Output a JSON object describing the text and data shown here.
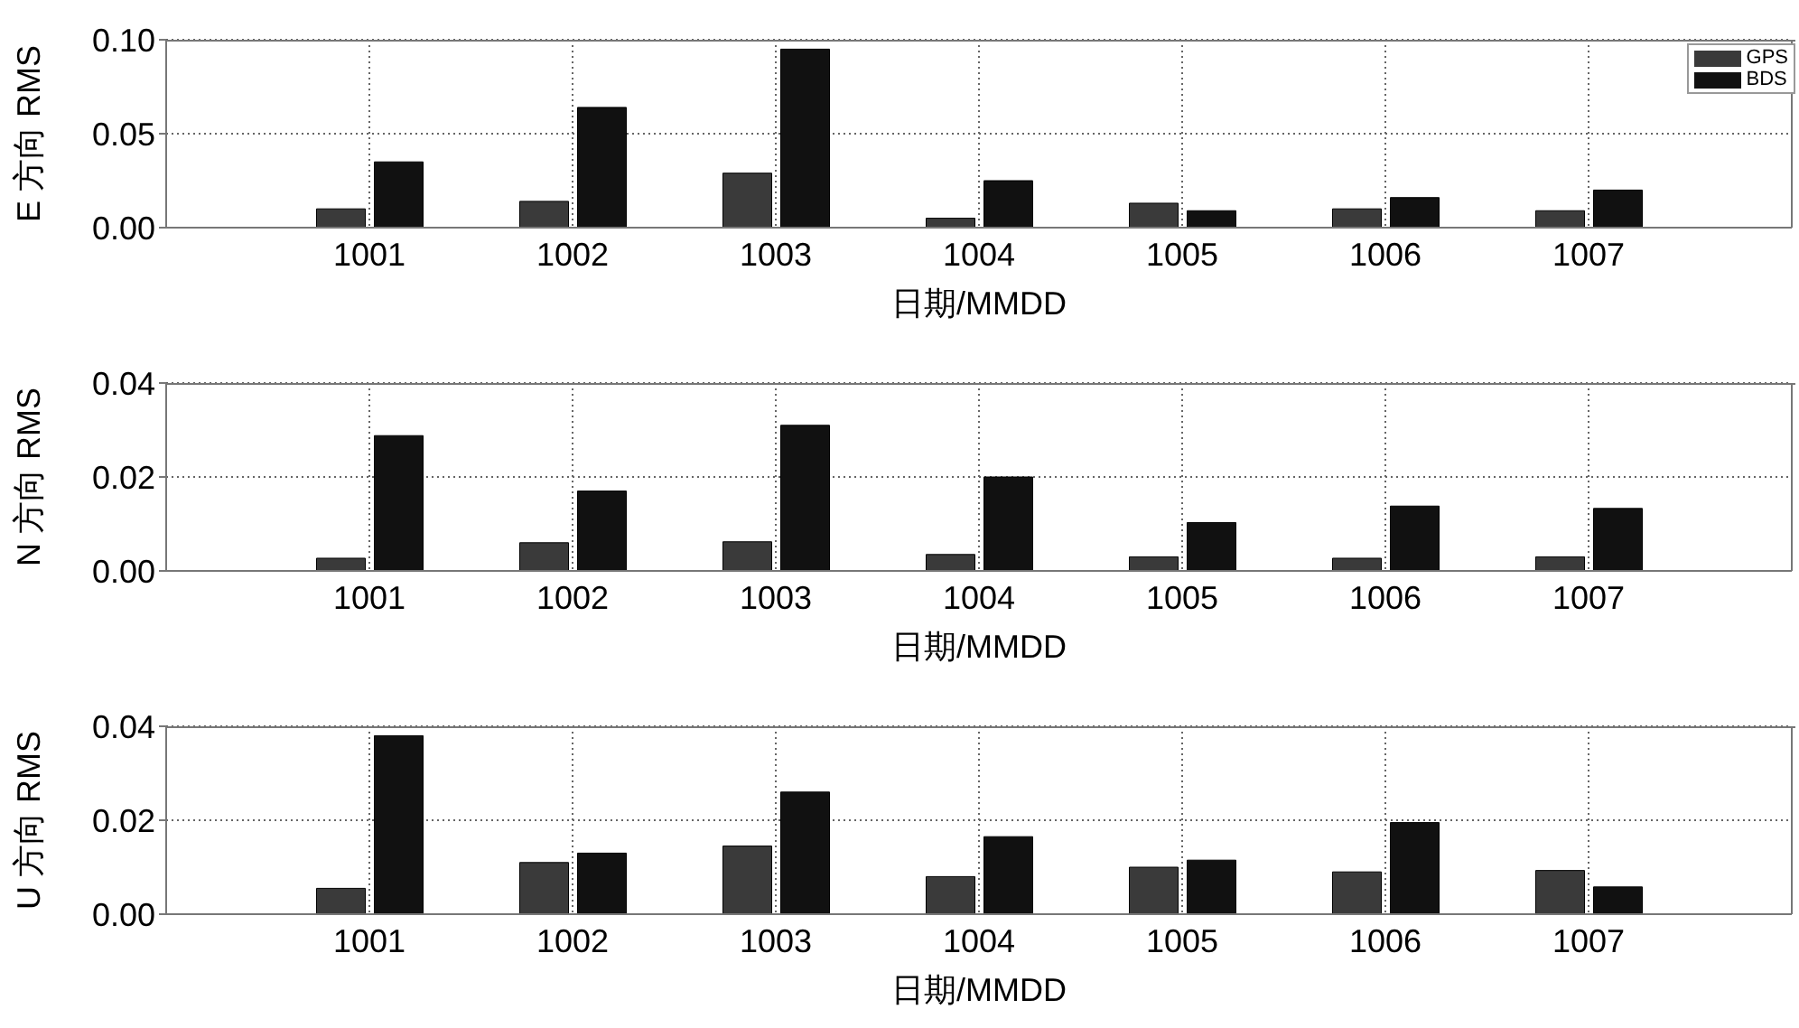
{
  "chart_data": [
    {
      "type": "bar",
      "ylabel": "E 方向 RMS",
      "xlabel": "日期/MMDD",
      "x": [
        1001,
        1002,
        1003,
        1004,
        1005,
        1006,
        1007
      ],
      "xlim": [
        1000,
        1008
      ],
      "xticks": [
        1001,
        1002,
        1003,
        1004,
        1005,
        1006,
        1007
      ],
      "ylim": [
        0,
        0.1
      ],
      "yticks": [
        {
          "value": 0,
          "label": "0.00"
        },
        {
          "value": 0.05,
          "label": "0.05"
        },
        {
          "value": 0.1,
          "label": "0.10"
        }
      ],
      "grid": true,
      "legend": "top right",
      "series": [
        {
          "name": "GPS",
          "color": "#3a3a3a",
          "values": [
            0.01,
            0.014,
            0.029,
            0.005,
            0.013,
            0.01,
            0.009
          ]
        },
        {
          "name": "BDS",
          "color": "#111111",
          "values": [
            0.035,
            0.064,
            0.095,
            0.025,
            0.009,
            0.016,
            0.02
          ]
        }
      ]
    },
    {
      "type": "bar",
      "ylabel": "N 方向 RMS",
      "xlabel": "日期/MMDD",
      "x": [
        1001,
        1002,
        1003,
        1004,
        1005,
        1006,
        1007
      ],
      "xlim": [
        1000,
        1008
      ],
      "xticks": [
        1001,
        1002,
        1003,
        1004,
        1005,
        1006,
        1007
      ],
      "ylim": [
        0,
        0.04
      ],
      "yticks": [
        {
          "value": 0,
          "label": "0.00"
        },
        {
          "value": 0.02,
          "label": "0.02"
        },
        {
          "value": 0.04,
          "label": "0.04"
        }
      ],
      "grid": true,
      "series": [
        {
          "color": "#3a3a3a",
          "values": [
            0.0027,
            0.006,
            0.0062,
            0.0035,
            0.003,
            0.0027,
            0.003
          ]
        },
        {
          "color": "#111111",
          "values": [
            0.0288,
            0.017,
            0.031,
            0.02,
            0.0103,
            0.0138,
            0.0133
          ]
        }
      ]
    },
    {
      "type": "bar",
      "ylabel": "U 方向 RMS",
      "xlabel": "日期/MMDD",
      "x": [
        1001,
        1002,
        1003,
        1004,
        1005,
        1006,
        1007
      ],
      "xlim": [
        1000,
        1008
      ],
      "xticks": [
        1001,
        1002,
        1003,
        1004,
        1005,
        1006,
        1007
      ],
      "ylim": [
        0,
        0.04
      ],
      "yticks": [
        {
          "value": 0,
          "label": "0.00"
        },
        {
          "value": 0.02,
          "label": "0.02"
        },
        {
          "value": 0.04,
          "label": "0.04"
        }
      ],
      "grid": true,
      "series": [
        {
          "color": "#3a3a3a",
          "values": [
            0.0055,
            0.011,
            0.0145,
            0.008,
            0.01,
            0.009,
            0.0093
          ]
        },
        {
          "color": "#111111",
          "values": [
            0.038,
            0.013,
            0.026,
            0.0165,
            0.0115,
            0.0195,
            0.0058
          ]
        }
      ]
    }
  ]
}
